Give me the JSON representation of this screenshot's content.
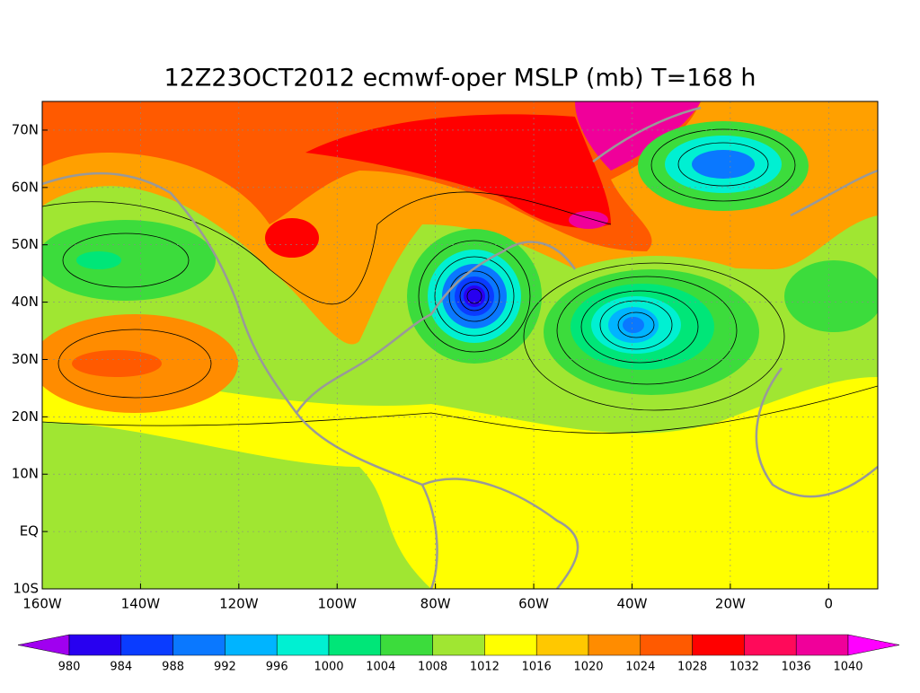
{
  "map": {
    "title": "12Z23OCT2012 ecmwf-oper MSLP (mb) T=168 h",
    "lon_range": [
      -160,
      10
    ],
    "lat_range": [
      -10,
      75
    ],
    "lon_ticks": [
      {
        "value": -160,
        "label": "160W"
      },
      {
        "value": -140,
        "label": "140W"
      },
      {
        "value": -120,
        "label": "120W"
      },
      {
        "value": -100,
        "label": "100W"
      },
      {
        "value": -80,
        "label": "80W"
      },
      {
        "value": -60,
        "label": "60W"
      },
      {
        "value": -40,
        "label": "40W"
      },
      {
        "value": -20,
        "label": "20W"
      },
      {
        "value": 0,
        "label": "0"
      }
    ],
    "lat_ticks": [
      {
        "value": -10,
        "label": "10S"
      },
      {
        "value": 0,
        "label": "EQ"
      },
      {
        "value": 10,
        "label": "10N"
      },
      {
        "value": 20,
        "label": "20N"
      },
      {
        "value": 30,
        "label": "30N"
      },
      {
        "value": 40,
        "label": "40N"
      },
      {
        "value": 50,
        "label": "50N"
      },
      {
        "value": 60,
        "label": "60N"
      },
      {
        "value": 70,
        "label": "70N"
      }
    ],
    "colorbar": {
      "levels": [
        980,
        984,
        988,
        992,
        996,
        1000,
        1004,
        1008,
        1012,
        1016,
        1020,
        1024,
        1028,
        1032,
        1036,
        1040
      ],
      "colors": [
        "#a000f0",
        "#2800f0",
        "#0a3cff",
        "#0a78ff",
        "#00b4ff",
        "#00f0d2",
        "#00e678",
        "#3cdc3c",
        "#a0e632",
        "#ffff00",
        "#ffc800",
        "#ff8c00",
        "#ff5a00",
        "#ff0000",
        "#ff0a5a",
        "#f0009a",
        "#ff00ff"
      ]
    }
  }
}
